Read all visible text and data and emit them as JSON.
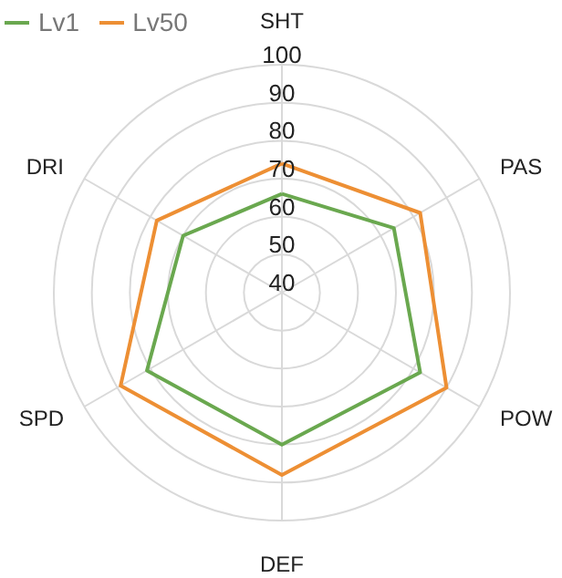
{
  "chart_data": {
    "type": "radar",
    "categories": [
      "SHT",
      "PAS",
      "POW",
      "DEF",
      "SPD",
      "DRI"
    ],
    "series": [
      {
        "name": "Lv1",
        "color": "#6aa84f",
        "values": [
          66,
          74,
          82,
          80,
          81,
          70
        ]
      },
      {
        "name": "Lv50",
        "color": "#ed8f34",
        "values": [
          74,
          82,
          90,
          88,
          89,
          78
        ]
      }
    ],
    "ylim": [
      40,
      100
    ],
    "yticks": [
      40,
      50,
      60,
      70,
      80,
      90,
      100
    ],
    "legend": "top left",
    "grid": true
  }
}
